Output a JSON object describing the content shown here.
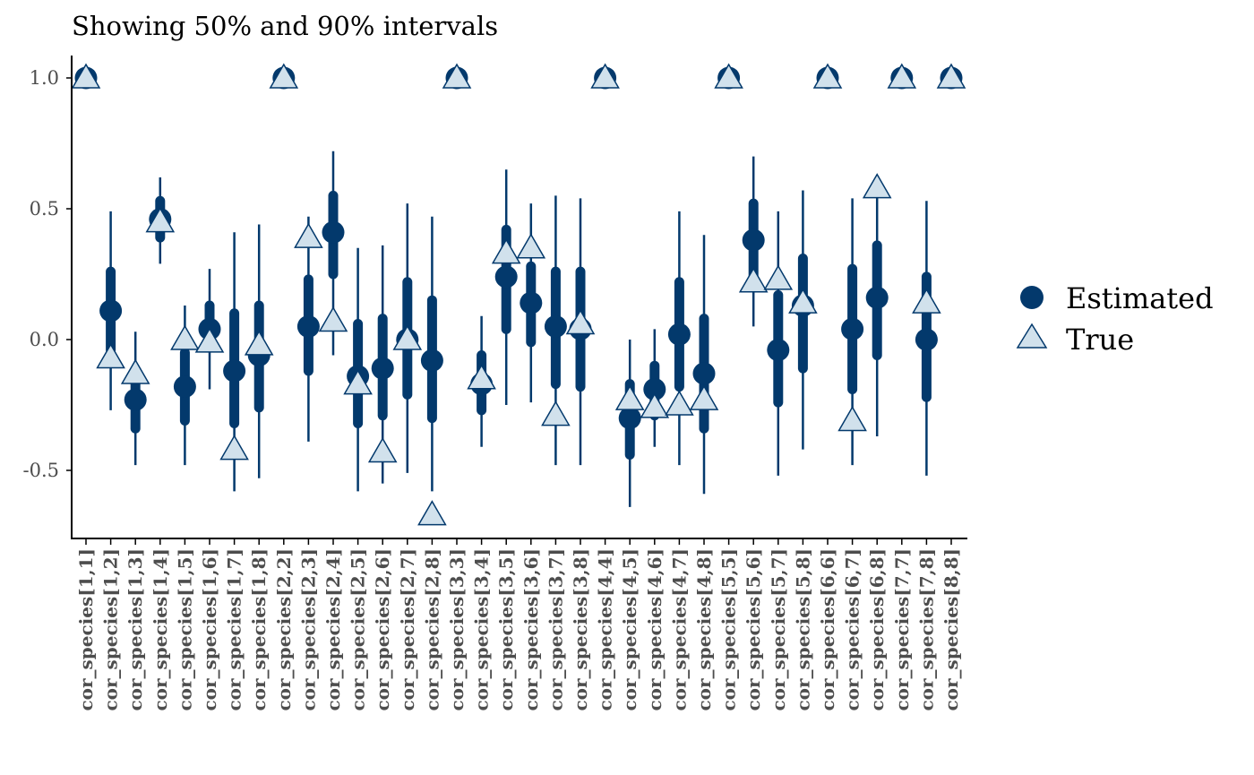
{
  "chart_data": {
    "type": "scatter",
    "title": "Showing 50% and 90% intervals",
    "xlabel": "",
    "ylabel": "",
    "ylim": [
      -0.76,
      1.08
    ],
    "grid": false,
    "legend_position": "right",
    "y_ticks": [
      "1.0",
      "0.5",
      "0.0",
      "-0.5"
    ],
    "y_tick_values": [
      1.0,
      0.5,
      0.0,
      -0.5
    ],
    "categories": [
      "cor_species[1,1]",
      "cor_species[1,2]",
      "cor_species[1,3]",
      "cor_species[1,4]",
      "cor_species[1,5]",
      "cor_species[1,6]",
      "cor_species[1,7]",
      "cor_species[1,8]",
      "cor_species[2,2]",
      "cor_species[2,3]",
      "cor_species[2,4]",
      "cor_species[2,5]",
      "cor_species[2,6]",
      "cor_species[2,7]",
      "cor_species[2,8]",
      "cor_species[3,3]",
      "cor_species[3,4]",
      "cor_species[3,5]",
      "cor_species[3,6]",
      "cor_species[3,7]",
      "cor_species[3,8]",
      "cor_species[4,4]",
      "cor_species[4,5]",
      "cor_species[4,6]",
      "cor_species[4,7]",
      "cor_species[4,8]",
      "cor_species[5,5]",
      "cor_species[5,6]",
      "cor_species[5,7]",
      "cor_species[5,8]",
      "cor_species[6,6]",
      "cor_species[6,7]",
      "cor_species[6,8]",
      "cor_species[7,7]",
      "cor_species[7,8]",
      "cor_species[8,8]"
    ],
    "series": [
      {
        "name": "Estimated",
        "values": [
          1.0,
          0.11,
          -0.23,
          0.46,
          -0.18,
          0.04,
          -0.12,
          -0.06,
          1.0,
          0.05,
          0.41,
          -0.14,
          -0.11,
          0.0,
          -0.08,
          1.0,
          -0.17,
          0.24,
          0.14,
          0.05,
          0.04,
          1.0,
          -0.3,
          -0.19,
          0.02,
          -0.13,
          1.0,
          0.38,
          -0.04,
          0.13,
          1.0,
          0.04,
          0.16,
          1.0,
          0.0,
          1.0
        ]
      },
      {
        "name": "True",
        "values": [
          1.0,
          -0.07,
          -0.13,
          0.45,
          0.0,
          -0.01,
          -0.42,
          -0.02,
          1.0,
          0.39,
          0.07,
          -0.17,
          -0.43,
          0.0,
          -0.67,
          1.0,
          -0.15,
          0.33,
          0.35,
          -0.29,
          0.06,
          1.0,
          -0.23,
          -0.26,
          -0.25,
          -0.23,
          1.0,
          0.22,
          0.23,
          0.14,
          1.0,
          -0.31,
          0.58,
          1.0,
          0.14,
          1.0
        ]
      }
    ],
    "interval_50": [
      [
        1.0,
        1.0
      ],
      [
        -0.04,
        0.26
      ],
      [
        -0.34,
        -0.17
      ],
      [
        0.39,
        0.53
      ],
      [
        -0.31,
        -0.05
      ],
      [
        -0.03,
        0.13
      ],
      [
        -0.32,
        0.1
      ],
      [
        -0.26,
        0.13
      ],
      [
        1.0,
        1.0
      ],
      [
        -0.12,
        0.23
      ],
      [
        0.25,
        0.55
      ],
      [
        -0.32,
        0.06
      ],
      [
        -0.29,
        0.08
      ],
      [
        -0.21,
        0.22
      ],
      [
        -0.3,
        0.15
      ],
      [
        1.0,
        1.0
      ],
      [
        -0.27,
        -0.06
      ],
      [
        0.04,
        0.42
      ],
      [
        -0.01,
        0.28
      ],
      [
        -0.17,
        0.26
      ],
      [
        -0.18,
        0.26
      ],
      [
        1.0,
        1.0
      ],
      [
        -0.44,
        -0.17
      ],
      [
        -0.29,
        -0.1
      ],
      [
        -0.18,
        0.22
      ],
      [
        -0.34,
        0.08
      ],
      [
        1.0,
        1.0
      ],
      [
        0.22,
        0.52
      ],
      [
        -0.24,
        0.17
      ],
      [
        -0.11,
        0.31
      ],
      [
        1.0,
        1.0
      ],
      [
        -0.19,
        0.27
      ],
      [
        -0.06,
        0.36
      ],
      [
        1.0,
        1.0
      ],
      [
        -0.22,
        0.24
      ],
      [
        1.0,
        1.0
      ]
    ],
    "interval_90": [
      [
        1.0,
        1.0
      ],
      [
        -0.27,
        0.49
      ],
      [
        -0.48,
        0.03
      ],
      [
        0.29,
        0.62
      ],
      [
        -0.48,
        0.13
      ],
      [
        -0.19,
        0.27
      ],
      [
        -0.58,
        0.41
      ],
      [
        -0.53,
        0.44
      ],
      [
        1.0,
        1.0
      ],
      [
        -0.39,
        0.47
      ],
      [
        -0.06,
        0.72
      ],
      [
        -0.58,
        0.35
      ],
      [
        -0.55,
        0.36
      ],
      [
        -0.51,
        0.52
      ],
      [
        -0.58,
        0.47
      ],
      [
        1.0,
        1.0
      ],
      [
        -0.41,
        0.09
      ],
      [
        -0.25,
        0.65
      ],
      [
        -0.24,
        0.52
      ],
      [
        -0.48,
        0.55
      ],
      [
        -0.48,
        0.54
      ],
      [
        1.0,
        1.0
      ],
      [
        -0.64,
        0.0
      ],
      [
        -0.41,
        0.04
      ],
      [
        -0.48,
        0.49
      ],
      [
        -0.59,
        0.4
      ],
      [
        1.0,
        1.0
      ],
      [
        0.05,
        0.7
      ],
      [
        -0.52,
        0.49
      ],
      [
        -0.42,
        0.57
      ],
      [
        1.0,
        1.0
      ],
      [
        -0.48,
        0.54
      ],
      [
        -0.37,
        0.55
      ],
      [
        1.0,
        1.0
      ],
      [
        -0.52,
        0.53
      ],
      [
        1.0,
        1.0
      ]
    ],
    "colors": {
      "estimated": "#03396c",
      "true_fill": "#d1e1ec",
      "true_stroke": "#03396c"
    }
  }
}
